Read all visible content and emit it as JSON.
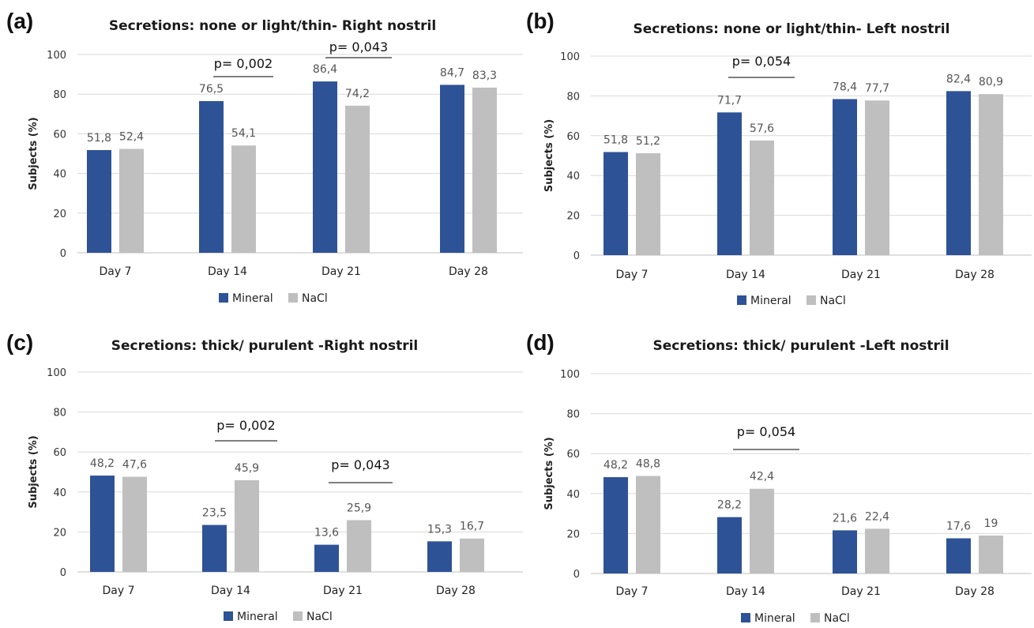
{
  "colors": {
    "Mineral": "#2E5296",
    "NaCl": "#BFBFBF",
    "grid": "#D9D9D9",
    "axis": "#BFBFBF",
    "bracket": "#333333"
  },
  "chart_data": [
    {
      "panel": "(a)",
      "type": "bar",
      "title": "Secretions: none or light/thin- Right nostril",
      "ylabel": "Subjects (%)",
      "ylim": [
        0,
        100
      ],
      "yticks": [
        "0",
        "20",
        "40",
        "60",
        "80",
        "100"
      ],
      "categories": [
        "Day 7",
        "Day 14",
        "Day 21",
        "Day 28"
      ],
      "series": [
        {
          "name": "Mineral",
          "values": [
            51.8,
            76.5,
            86.4,
            84.7
          ],
          "labels": [
            "51,8",
            "76,5",
            "86,4",
            "84,7"
          ]
        },
        {
          "name": "NaCl",
          "values": [
            52.4,
            54.1,
            74.2,
            83.3
          ],
          "labels": [
            "52,4",
            "54,1",
            "74,2",
            "83,3"
          ]
        }
      ],
      "annotations": [
        {
          "category": "Day 14",
          "text": "p= 0,002"
        },
        {
          "category": "Day 21",
          "text": "p= 0,043"
        }
      ],
      "legend": "bottom"
    },
    {
      "panel": "(b)",
      "type": "bar",
      "title": "Secretions: none or light/thin- Left nostril",
      "ylabel": "Subjects (%)",
      "ylim": [
        0,
        100
      ],
      "yticks": [
        "0",
        "20",
        "40",
        "60",
        "80",
        "100"
      ],
      "categories": [
        "Day 7",
        "Day 14",
        "Day 21",
        "Day 28"
      ],
      "series": [
        {
          "name": "Mineral",
          "values": [
            51.8,
            71.7,
            78.4,
            82.4
          ],
          "labels": [
            "51,8",
            "71,7",
            "78,4",
            "82,4"
          ]
        },
        {
          "name": "NaCl",
          "values": [
            51.2,
            57.6,
            77.7,
            80.9
          ],
          "labels": [
            "51,2",
            "57,6",
            "77,7",
            "80,9"
          ]
        }
      ],
      "annotations": [
        {
          "category": "Day 14",
          "text": "p= 0,054"
        }
      ],
      "legend": "bottom"
    },
    {
      "panel": "(c)",
      "type": "bar",
      "title": "Secretions: thick/ purulent -Right nostril",
      "ylabel": "Subjects (%)",
      "ylim": [
        0,
        100
      ],
      "yticks": [
        "0",
        "20",
        "40",
        "60",
        "80",
        "100"
      ],
      "categories": [
        "Day 7",
        "Day 14",
        "Day 21",
        "Day 28"
      ],
      "series": [
        {
          "name": "Mineral",
          "values": [
            48.2,
            23.5,
            13.6,
            15.3
          ],
          "labels": [
            "48,2",
            "23,5",
            "13,6",
            "15,3"
          ]
        },
        {
          "name": "NaCl",
          "values": [
            47.6,
            45.9,
            25.9,
            16.7
          ],
          "labels": [
            "47,6",
            "45,9",
            "25,9",
            "16,7"
          ]
        }
      ],
      "annotations": [
        {
          "category": "Day 14",
          "text": "p= 0,002"
        },
        {
          "category": "Day 21",
          "text": "p= 0,043"
        }
      ],
      "legend": "bottom"
    },
    {
      "panel": "(d)",
      "type": "bar",
      "title": "Secretions: thick/ purulent -Left nostril",
      "ylabel": "Subjects (%)",
      "ylim": [
        0,
        100
      ],
      "yticks": [
        "0",
        "20",
        "40",
        "60",
        "80",
        "100"
      ],
      "categories": [
        "Day 7",
        "Day 14",
        "Day 21",
        "Day 28"
      ],
      "series": [
        {
          "name": "Mineral",
          "values": [
            48.2,
            28.2,
            21.6,
            17.6
          ],
          "labels": [
            "48,2",
            "28,2",
            "21,6",
            "17,6"
          ]
        },
        {
          "name": "NaCl",
          "values": [
            48.8,
            42.4,
            22.4,
            19.0
          ],
          "labels": [
            "48,8",
            "42,4",
            "22,4",
            "19"
          ]
        }
      ],
      "annotations": [
        {
          "category": "Day 14",
          "text": "p= 0,054"
        }
      ],
      "legend": "bottom"
    }
  ]
}
